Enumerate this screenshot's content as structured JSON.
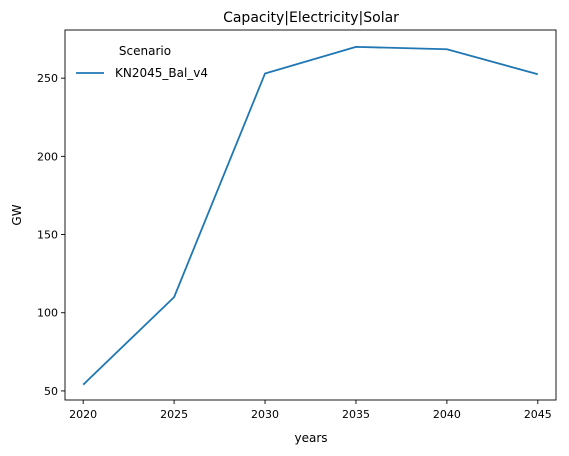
{
  "chart_data": {
    "type": "line",
    "title": "Capacity|Electricity|Solar",
    "xlabel": "years",
    "ylabel": "GW",
    "x": [
      2020,
      2025,
      2030,
      2035,
      2040,
      2045
    ],
    "series": [
      {
        "name": "KN2045_Bal_v4",
        "color": "#1f77b4",
        "values": [
          54,
          110,
          253,
          270,
          268.5,
          252.5
        ]
      }
    ],
    "xticks": [
      2020,
      2025,
      2030,
      2035,
      2040,
      2045
    ],
    "yticks": [
      50,
      100,
      150,
      200,
      250
    ],
    "xlim": [
      2019,
      2046
    ],
    "ylim": [
      44.2,
      280.8
    ],
    "grid": false,
    "legend": {
      "title": "Scenario",
      "placement": "top-left"
    }
  }
}
